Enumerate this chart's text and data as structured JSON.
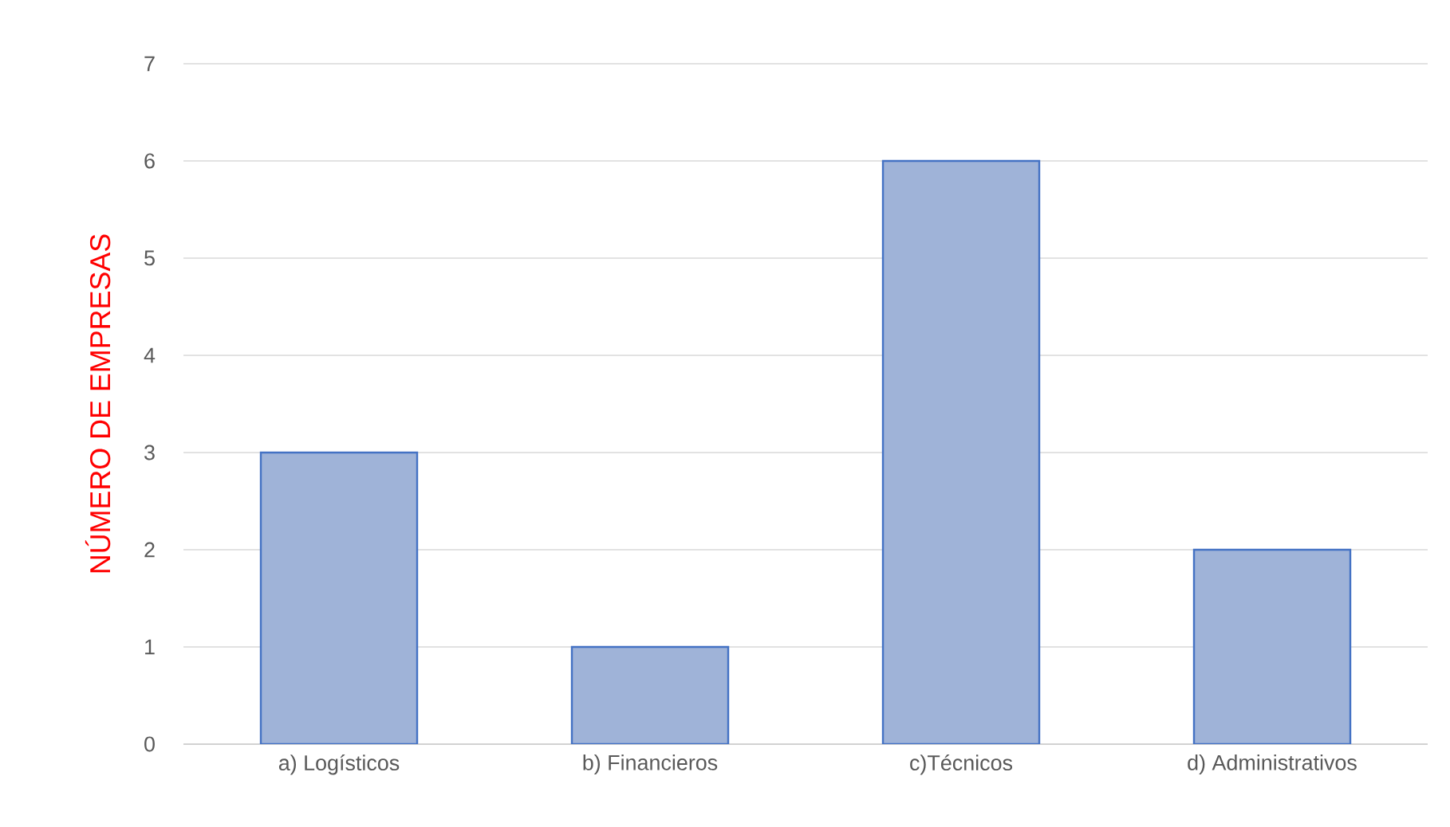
{
  "chart_data": {
    "type": "bar",
    "ylabel": "NÚMERO DE EMPRESAS",
    "categories": [
      "a) Logísticos",
      "b) Financieros",
      "c)Técnicos",
      "d) Administrativos"
    ],
    "values": [
      3,
      1,
      6,
      2
    ],
    "color": "#9fb3d8",
    "ylim": [
      0,
      7
    ],
    "yticks": [
      0,
      1,
      2,
      3,
      4,
      5,
      6,
      7
    ],
    "grid": "y"
  }
}
